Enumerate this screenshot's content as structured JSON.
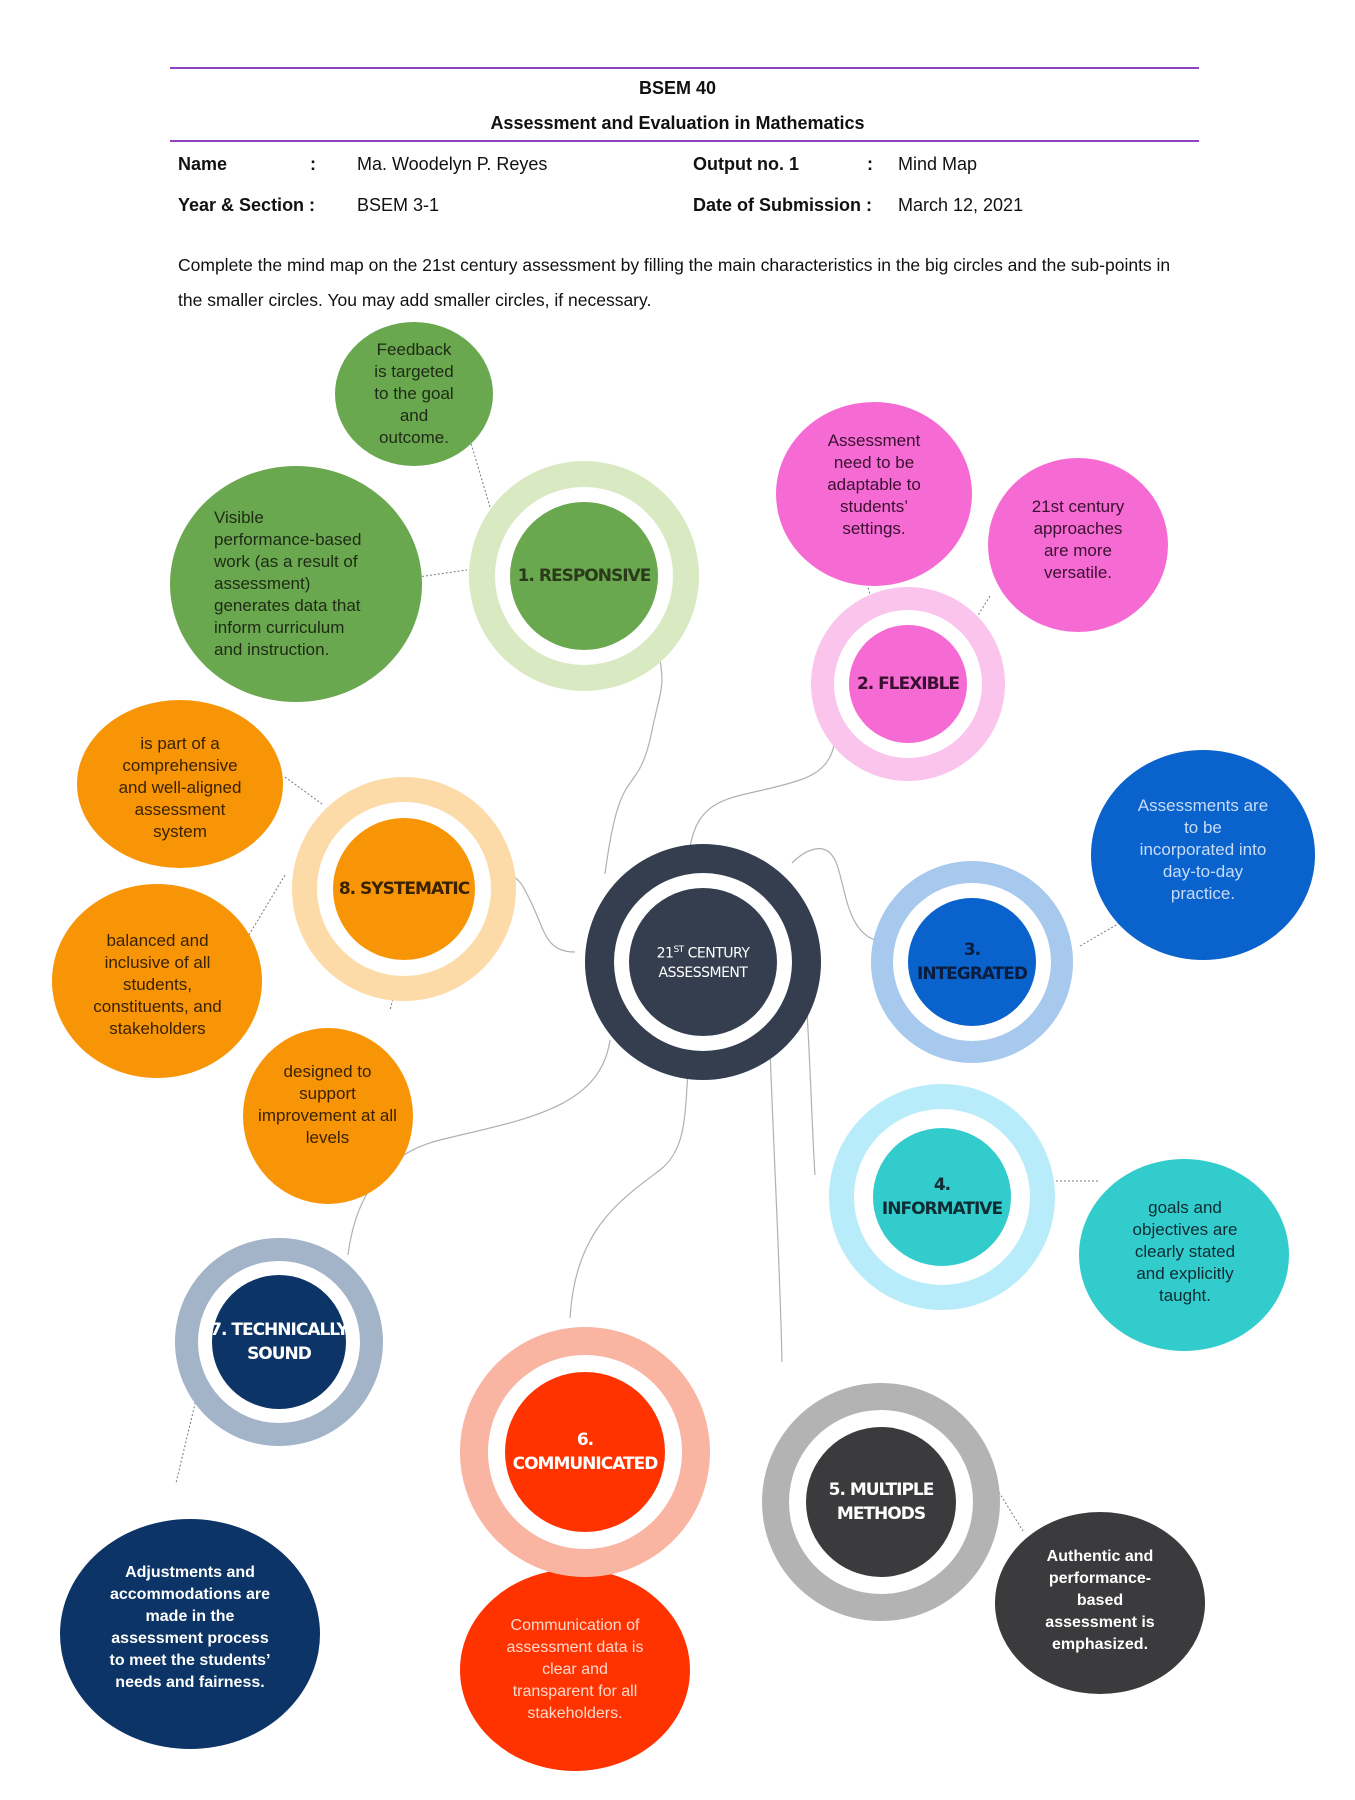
{
  "header": {
    "course_code": "BSEM 40",
    "course_title": "Assessment and Evaluation in Mathematics"
  },
  "fields": {
    "name_label": "Name",
    "name_sep": ":",
    "name_value": "Ma. Woodelyn P. Reyes",
    "output_label": "Output no. 1",
    "output_sep": ":",
    "output_value": "Mind Map",
    "year_label": "Year & Section :",
    "year_value": "BSEM 3-1",
    "date_label": "Date of Submission :",
    "date_value": "March 12, 2021"
  },
  "instructions": "Complete the mind map on the 21st century assessment by filling the main characteristics in the big circles and the sub-points in the smaller circles. You may add smaller circles, if necessary.",
  "center": {
    "prefix": "21",
    "suffix": "ST",
    "line1_rest": " CENTURY",
    "line2": "ASSESSMENT",
    "color": "#343e4f"
  },
  "hubs": {
    "responsive": "1. RESPONSIVE",
    "flexible": "2. FLEXIBLE",
    "integrated": "3. INTEGRATED",
    "informative": "4. INFORMATIVE",
    "multiple": "5. MULTIPLE\nMETHODS",
    "communicated": "6. COMMUNICATED",
    "technical": "7. TECHNICALLY\nSOUND",
    "systematic": "8. SYSTEMATIC"
  },
  "bubbles": {
    "feedback": "Feedback\nis targeted\nto the goal\nand\noutcome.",
    "visible": "Visible\nperformance-based\nwork (as a result of\nassessment)\ngenerates data that\ninform curriculum\nand instruction.",
    "adaptable": "Assessment\nneed to be\nadaptable to\nstudents’\nsettings.",
    "versatile": "21st century\napproaches\nare more\nversatile.",
    "incorporated": "Assessments are\nto be\nincorporated into\nday-to-day\npractice.",
    "goals": "goals and\nobjectives are\nclearly stated\nand explicitly\ntaught.",
    "authentic": "Authentic and\nperformance-\nbased\nassessment is\nemphasized.",
    "communication": "Communication of\nassessment data is\nclear and\ntransparent for all\nstakeholders.",
    "adjustments": "Adjustments and\naccommodations are\nmade in the\nassessment process\nto meet the students’\nneeds and fairness.",
    "comprehensive": "is part of a\ncomprehensive\nand well-aligned\nassessment\nsystem",
    "balanced": "balanced and\ninclusive of all\nstudents,\nconstituents, and\nstakeholders",
    "designed": "designed to\nsupport\nimprovement at all\nlevels"
  },
  "colors": {
    "responsive": "#6aa84f",
    "flexible": "#f56bd3",
    "integrated": "#0a62cc",
    "informative": "#33cccc",
    "multiple": "#3b3b3d",
    "communicated": "#ff3300",
    "technical": "#0c3466",
    "systematic": "#f79506"
  }
}
